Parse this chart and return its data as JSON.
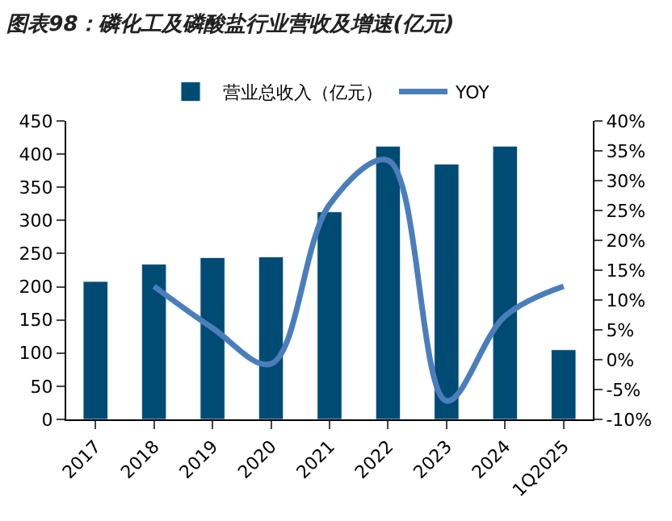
{
  "chart_data": {
    "type": "bar",
    "title": "图表98：磷化工及磷酸盐行业营收及增速(亿元)",
    "categories": [
      "2017",
      "2018",
      "2019",
      "2020",
      "2021",
      "2022",
      "2023",
      "2024",
      "1Q2025"
    ],
    "series": [
      {
        "name": "营业总收入（亿元）",
        "color": "#004b73",
        "values": [
          208,
          234,
          244,
          245,
          313,
          412,
          385,
          412,
          105
        ]
      },
      {
        "name": "YOY",
        "type": "line",
        "axis": "y2",
        "color": "#4a7ebb",
        "values": [
          null,
          12.3,
          5.3,
          -0.7,
          26,
          33.4,
          -6.9,
          7.3,
          12.3
        ]
      }
    ],
    "ylim": [
      0,
      450
    ],
    "yticks": [
      0,
      50,
      100,
      150,
      200,
      250,
      300,
      350,
      400,
      450
    ],
    "y2lim": [
      -10,
      40
    ],
    "y2ticks": [
      {
        "value": -10,
        "label": "-10%"
      },
      {
        "value": -5,
        "label": "-5%"
      },
      {
        "value": 0,
        "label": "0%"
      },
      {
        "value": 5,
        "label": "5%"
      },
      {
        "value": 10,
        "label": "10%"
      },
      {
        "value": 15,
        "label": "15%"
      },
      {
        "value": 20,
        "label": "20%"
      },
      {
        "value": 25,
        "label": "25%"
      },
      {
        "value": 30,
        "label": "30%"
      },
      {
        "value": 35,
        "label": "35%"
      },
      {
        "value": 40,
        "label": "40%"
      }
    ],
    "legend": "top",
    "marker": "none",
    "line_style": "solid"
  }
}
